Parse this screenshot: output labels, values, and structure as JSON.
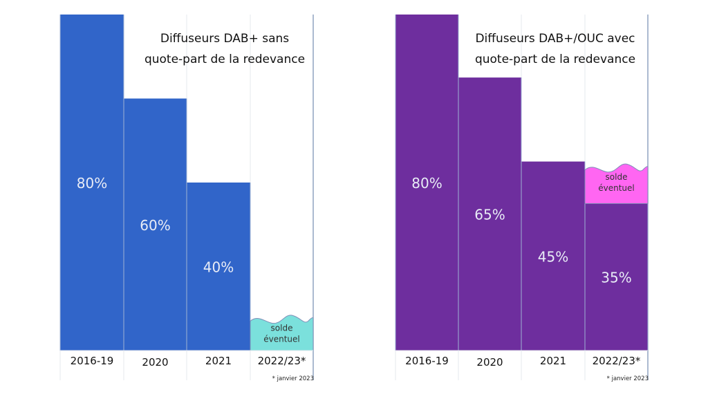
{
  "chart_data": [
    {
      "type": "bar",
      "title": "Diffuseurs DAB+ sans quote-part de la redevance",
      "title_lines": [
        "Diffuseurs DAB+ sans",
        "quote-part de la redevance"
      ],
      "categories": [
        "2016-19",
        "2020",
        "2021",
        "2022/23*"
      ],
      "values": [
        80,
        60,
        40,
        null
      ],
      "value_labels": [
        "80%",
        "60%",
        "40%",
        ""
      ],
      "ylim": [
        0,
        80
      ],
      "color": "#3165c9",
      "solde": {
        "category": "2022/23*",
        "label_lines": [
          "solde",
          "éventuel"
        ],
        "color": "#7be0dc",
        "approx_value": 7
      },
      "footnote": "* janvier 2023",
      "xlabel": "",
      "ylabel": "",
      "grid": true
    },
    {
      "type": "bar",
      "title": "Diffuseurs DAB+/OUC avec quote-part de la redevance",
      "title_lines": [
        "Diffuseurs DAB+/OUC avec",
        "quote-part de la redevance"
      ],
      "categories": [
        "2016-19",
        "2020",
        "2021",
        "2022/23*"
      ],
      "values": [
        80,
        65,
        45,
        35
      ],
      "value_labels": [
        "80%",
        "65%",
        "45%",
        "35%"
      ],
      "ylim": [
        0,
        80
      ],
      "color": "#6e2e9e",
      "solde": {
        "category": "2022/23*",
        "label_lines": [
          "solde",
          "éventuel"
        ],
        "color": "#ff66f2",
        "approx_value": 8
      },
      "footnote": "* janvier 2023",
      "xlabel": "",
      "ylabel": "",
      "grid": true
    }
  ]
}
